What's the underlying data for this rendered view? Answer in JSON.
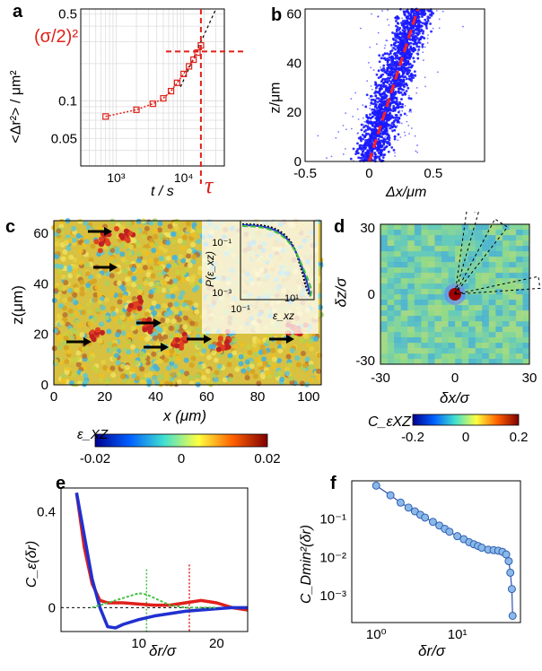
{
  "panels": {
    "a": {
      "label": "a",
      "ylabel": "<Δr²> / μm²",
      "xlabel": "t / s",
      "yticks": [
        "0.5",
        "0.1",
        "0.05"
      ],
      "xticks": [
        "10³",
        "10⁴"
      ],
      "annot_sigma": "(σ/2)²",
      "annot_tau": "τ",
      "accent": "#e0201a"
    },
    "b": {
      "label": "b",
      "ylabel": "z/μm",
      "xlabel": "Δx/μm",
      "yticks": [
        "0",
        "20",
        "40",
        "60"
      ],
      "xticks": [
        "-0.5",
        "0",
        "0.5"
      ],
      "point_color": "#1a1aff"
    },
    "c": {
      "label": "c",
      "ylabel": "z(μm)",
      "xlabel": "x (μm)",
      "yticks": [
        "0",
        "20",
        "40",
        "60"
      ],
      "xticks": [
        "0",
        "20",
        "40",
        "60",
        "80",
        "100"
      ],
      "inset_ylabel": "P(ε_xz)",
      "inset_xlabel": "ε_xz",
      "inset_yticks": [
        "10⁻¹",
        "10⁻³"
      ],
      "inset_xticks": [
        "10⁻¹",
        "10¹"
      ],
      "colorbar_label": "ε_XZ",
      "colorbar_ticks": [
        "-0.02",
        "0",
        "0.02"
      ]
    },
    "d": {
      "label": "d",
      "ylabel": "δz/σ",
      "xlabel": "δx/σ",
      "yticks": [
        "30",
        "0",
        "-30"
      ],
      "xticks": [
        "-30",
        "0",
        "30"
      ],
      "colorbar_label": "C_εXZ",
      "colorbar_ticks": [
        "-0.2",
        "0",
        "0.2"
      ]
    },
    "e": {
      "label": "e",
      "ylabel": "C_ε(δr)",
      "xlabel": "δr/σ",
      "yticks": [
        "0.4",
        "0"
      ],
      "xticks": [
        "10",
        "20"
      ]
    },
    "f": {
      "label": "f",
      "ylabel": "C_Dmin²(δr)",
      "xlabel": "δr/σ",
      "yticks": [
        "10⁻¹",
        "10⁻²",
        "10⁻³"
      ],
      "xticks": [
        "10⁰",
        "10¹"
      ]
    }
  },
  "chart_data": [
    {
      "type": "line",
      "panel": "a",
      "xscale": "log",
      "yscale": "log",
      "series": [
        {
          "x": [
            700,
            2000,
            3500,
            5000,
            6500,
            8000,
            10000,
            12000,
            14000,
            16000,
            18000
          ],
          "y": [
            0.075,
            0.085,
            0.095,
            0.105,
            0.12,
            0.14,
            0.165,
            0.19,
            0.215,
            0.245,
            0.28
          ]
        }
      ],
      "xlim": [
        300,
        40000
      ],
      "ylim": [
        0.03,
        0.55
      ]
    },
    {
      "type": "scatter",
      "panel": "b",
      "xlim": [
        -0.5,
        0.9
      ],
      "ylim": [
        0,
        62
      ]
    },
    {
      "type": "line",
      "panel": "e",
      "xlim": [
        0,
        24
      ],
      "ylim": [
        -0.1,
        0.5
      ],
      "series": [
        {
          "x": [
            2,
            3,
            4,
            5,
            6,
            8,
            10,
            12,
            14,
            16,
            18,
            20,
            22,
            24
          ],
          "y": [
            0.48,
            0.25,
            0.1,
            0.03,
            0.02,
            0.02,
            0.015,
            0.01,
            0.01,
            0.02,
            0.03,
            0.02,
            0.0,
            -0.01
          ],
          "color": "#e0201a"
        },
        {
          "x": [
            2,
            3,
            4,
            5,
            6,
            7,
            8,
            10,
            12,
            14,
            16,
            18,
            20,
            22,
            24
          ],
          "y": [
            0.48,
            0.3,
            0.12,
            0.0,
            -0.08,
            -0.085,
            -0.07,
            -0.05,
            -0.035,
            -0.025,
            -0.015,
            -0.01,
            -0.005,
            0.0,
            0.0
          ],
          "color": "#2030d0"
        },
        {
          "x": [
            4,
            6,
            8,
            10,
            11,
            12,
            14,
            16,
            18,
            20
          ],
          "y": [
            0.0,
            0.02,
            0.04,
            0.06,
            0.055,
            0.04,
            0.01,
            0.0,
            0.0,
            0.0
          ],
          "color": "#40c040"
        }
      ]
    },
    {
      "type": "scatter",
      "panel": "f",
      "xscale": "log",
      "yscale": "log",
      "xlim": [
        0.5,
        60
      ],
      "ylim": [
        0.0002,
        1
      ],
      "series": [
        {
          "x": [
            1,
            1.5,
            2,
            2.5,
            3,
            3.5,
            4,
            5,
            6,
            7,
            8,
            10,
            12,
            14,
            16,
            18,
            20,
            24,
            28,
            32,
            36,
            40,
            43,
            45,
            47,
            48
          ],
          "y": [
            0.75,
            0.42,
            0.27,
            0.2,
            0.16,
            0.13,
            0.11,
            0.085,
            0.068,
            0.056,
            0.047,
            0.036,
            0.03,
            0.025,
            0.022,
            0.02,
            0.018,
            0.016,
            0.0155,
            0.015,
            0.014,
            0.012,
            0.008,
            0.004,
            0.0015,
            0.0003
          ]
        }
      ]
    }
  ]
}
